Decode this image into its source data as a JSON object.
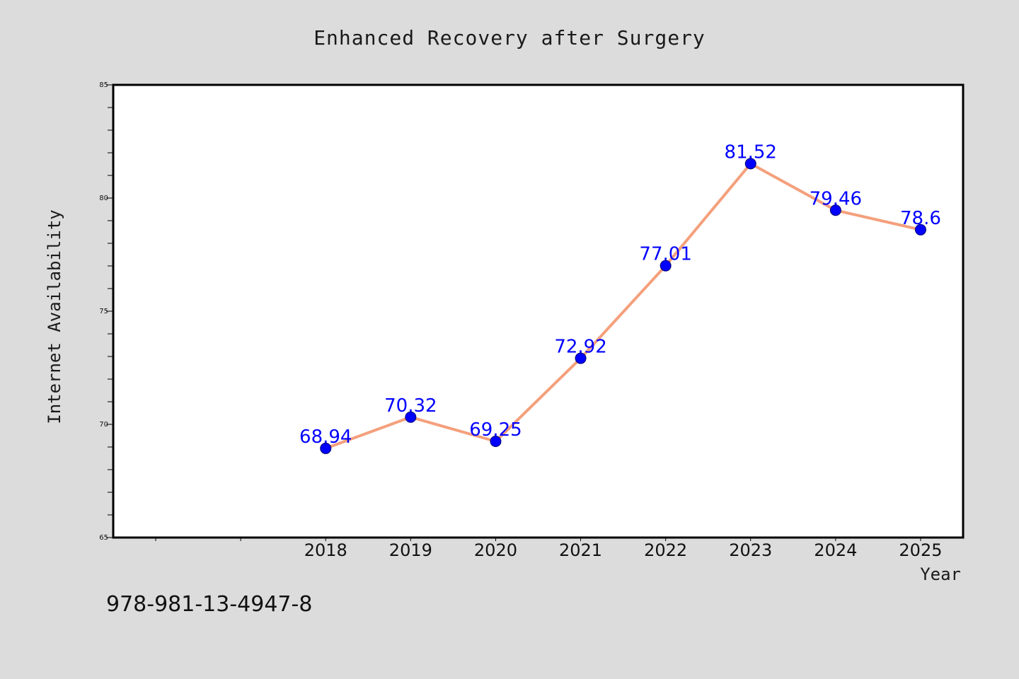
{
  "chart_data": {
    "type": "line",
    "title": "Enhanced Recovery after Surgery",
    "xlabel": "Year",
    "ylabel": "Internet Availability",
    "categories": [
      "2018",
      "2019",
      "2020",
      "2021",
      "2022",
      "2023",
      "2024",
      "2025"
    ],
    "series": [
      {
        "values": [
          68.94,
          70.32,
          69.25,
          72.92,
          77.01,
          81.52,
          79.46,
          78.6
        ],
        "labels": [
          "68.94",
          "70.32",
          "69.25",
          "72.92",
          "77.01",
          "81.52",
          "79.46",
          "78.6"
        ],
        "line_color": "#f4a07c",
        "marker_color": "#0000ff"
      }
    ],
    "ylim": [
      65,
      85
    ],
    "yticks": [
      65,
      70,
      75,
      80,
      85
    ],
    "xlim": [
      2015.5,
      2025.5
    ],
    "grid": false,
    "legend": "none"
  },
  "footnote": "978-981-13-4947-8",
  "colors": {
    "background": "#dcdcdc",
    "plot_background": "#ffffff",
    "axis": "#000000",
    "label_text": "#0000ff"
  }
}
